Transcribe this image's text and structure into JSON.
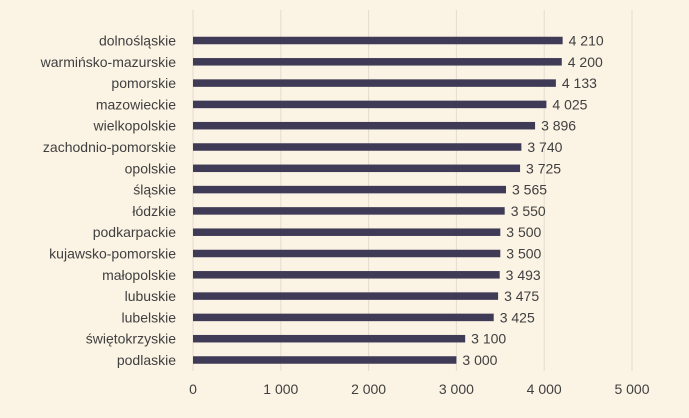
{
  "chart_data": {
    "type": "bar",
    "orientation": "horizontal",
    "title": "",
    "xlabel": "",
    "ylabel": "",
    "xlim": [
      0,
      5000
    ],
    "xticks": [
      0,
      1000,
      2000,
      3000,
      4000,
      5000
    ],
    "xtick_labels": [
      "0",
      "1 000",
      "2 000",
      "3 000",
      "4 000",
      "5 000"
    ],
    "grid": "vertical",
    "legend": "none",
    "bar_color": "#3f3b56",
    "background": "#fbf3e4",
    "categories": [
      "dolnośląskie",
      "warmińsko-mazurskie",
      "pomorskie",
      "mazowieckie",
      "wielkopolskie",
      "zachodnio-pomorskie",
      "opolskie",
      "śląskie",
      "łódzkie",
      "podkarpackie",
      "kujawsko-pomorskie",
      "małopolskie",
      "lubuskie",
      "lubelskie",
      "świętokrzyskie",
      "podlaskie"
    ],
    "values": [
      4210,
      4200,
      4133,
      4025,
      3896,
      3740,
      3725,
      3565,
      3550,
      3500,
      3500,
      3493,
      3475,
      3425,
      3100,
      3000
    ],
    "value_labels": [
      "4 210",
      "4 200",
      "4 133",
      "4 025",
      "3 896",
      "3 740",
      "3 725",
      "3 565",
      "3 550",
      "3 500",
      "3 500",
      "3 493",
      "3 475",
      "3 425",
      "3 100",
      "3 000"
    ]
  }
}
